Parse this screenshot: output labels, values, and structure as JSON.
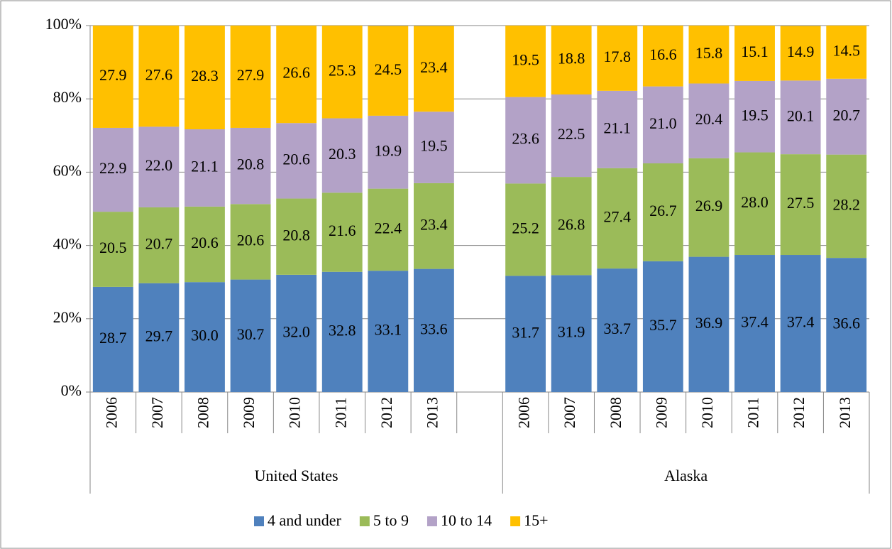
{
  "chart_data": {
    "type": "stacked_bar",
    "categories": [
      "2006",
      "2007",
      "2008",
      "2009",
      "2010",
      "2011",
      "2012",
      "2013",
      null,
      "2006",
      "2007",
      "2008",
      "2009",
      "2010",
      "2011",
      "2012",
      "2013"
    ],
    "groups": [
      "United States",
      "Alaska"
    ],
    "series": [
      {
        "name": "4 and under",
        "color": "#4f81bd",
        "values": [
          28.7,
          29.7,
          30.0,
          30.7,
          32.0,
          32.8,
          33.1,
          33.6,
          null,
          31.7,
          31.9,
          33.7,
          35.7,
          36.9,
          37.4,
          37.4,
          36.6
        ],
        "value_labels": [
          "28.7",
          "29.7",
          "30.0",
          "30.7",
          "32.0",
          "32.8",
          "33.1",
          "33.6",
          null,
          "31.7",
          "31.9",
          "33.7",
          "35.7",
          "36.9",
          "37.4",
          "37.4",
          "36.6"
        ]
      },
      {
        "name": "5 to 9",
        "color": "#9bbb59",
        "values": [
          20.5,
          20.7,
          20.6,
          20.6,
          20.8,
          21.6,
          22.4,
          23.4,
          null,
          25.2,
          26.8,
          27.4,
          26.7,
          26.9,
          28.0,
          27.5,
          28.2
        ],
        "value_labels": [
          "20.5",
          "20.7",
          "20.6",
          "20.6",
          "20.8",
          "21.6",
          "22.4",
          "23.4",
          null,
          "25.2",
          "26.8",
          "27.4",
          "26.7",
          "26.9",
          "28.0",
          "27.5",
          "28.2"
        ]
      },
      {
        "name": "10 to 14",
        "color": "#b3a2c7",
        "values": [
          22.9,
          22.0,
          21.1,
          20.8,
          20.6,
          20.3,
          19.9,
          19.5,
          null,
          23.6,
          22.5,
          21.1,
          21.0,
          20.4,
          19.5,
          20.1,
          20.7
        ],
        "value_labels": [
          "22.9",
          "22.0",
          "21.1",
          "20.8",
          "20.6",
          "20.3",
          "19.9",
          "19.5",
          null,
          "23.6",
          "22.5",
          "21.1",
          "21.0",
          "20.4",
          "19.5",
          "20.1",
          "20.7"
        ]
      },
      {
        "name": "15+",
        "color": "#ffc000",
        "values": [
          27.9,
          27.6,
          28.3,
          27.9,
          26.6,
          25.3,
          24.5,
          23.4,
          null,
          19.5,
          18.8,
          17.8,
          16.6,
          15.8,
          15.1,
          14.9,
          14.5
        ],
        "value_labels": [
          "27.9",
          "27.6",
          "28.3",
          "27.9",
          "26.6",
          "25.3",
          "24.5",
          "23.4",
          null,
          "19.5",
          "18.8",
          "17.8",
          "16.6",
          "15.8",
          "15.1",
          "14.9",
          "14.5"
        ]
      }
    ],
    "ylim": [
      0,
      100
    ],
    "yticks": [
      {
        "value": 0,
        "label": "0%"
      },
      {
        "value": 20,
        "label": "20%"
      },
      {
        "value": 40,
        "label": "40%"
      },
      {
        "value": 60,
        "label": "60%"
      },
      {
        "value": 80,
        "label": "80%"
      },
      {
        "value": 100,
        "label": "100%"
      }
    ],
    "grid": true,
    "legend": "bottom"
  }
}
